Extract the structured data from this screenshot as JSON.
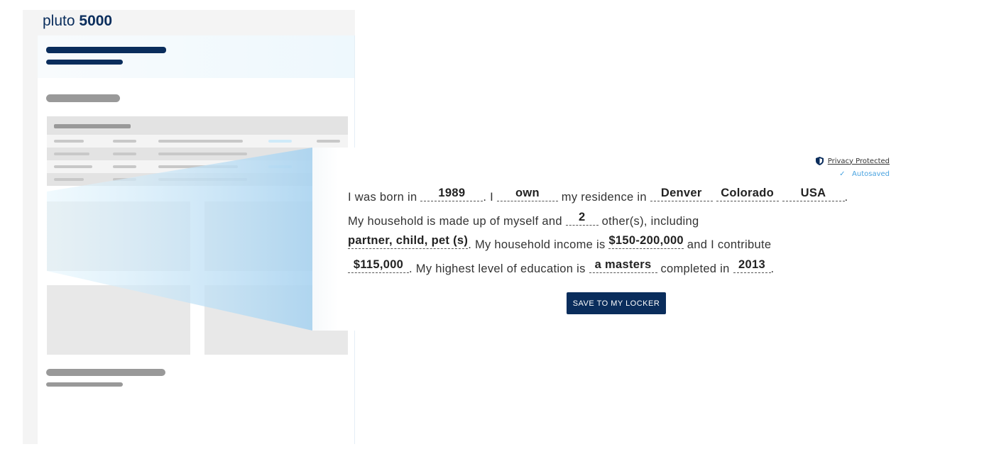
{
  "illustration": {
    "logo_text": "pluto",
    "logo_number": "5000"
  },
  "status": {
    "privacy_label": "Privacy Protected",
    "autosaved_label": "Autosaved",
    "check_icon": "check-icon",
    "shield_icon": "shield-icon"
  },
  "sentence": {
    "t1": "I was born in",
    "birth_year": "1989",
    "t2": ". I",
    "ownership": "own",
    "t3": "my residence in",
    "city": "Denver",
    "state": "Colorado",
    "country": "USA",
    "t4": ".",
    "t5": "My household is made up of myself and",
    "others_count": "2",
    "t6": "other(s), including",
    "household_members": "partner, child, pet (s)",
    "t7": ". My household income is",
    "income": "$150-200,000",
    "t8": "and I contribute",
    "contribution": "$115,000",
    "t9": ". My highest level of education is",
    "education": "a masters",
    "t10": "completed in",
    "grad_year": "2013",
    "t11": "."
  },
  "buttons": {
    "save": "SAVE TO MY LOCKER"
  },
  "colors": {
    "brand": "#0a2d5c",
    "accent": "#4aa3e0"
  }
}
